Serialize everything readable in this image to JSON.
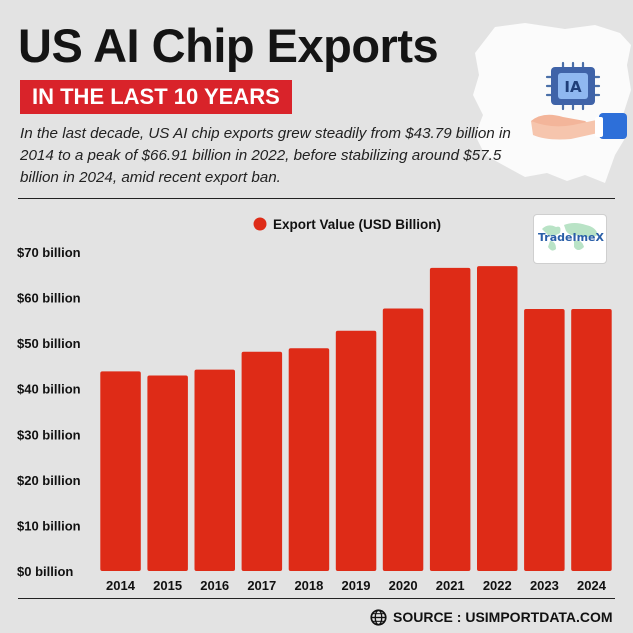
{
  "header": {
    "title": "US AI Chip Exports",
    "subtitle": "IN THE LAST 10 YEARS",
    "description": "In the last decade, US AI chip exports grew steadily from $43.79 billion in 2014 to a peak of $66.91 billion in 2022, before stabilizing around $57.5 billion in 2024, amid recent export ban."
  },
  "hero_chip_label": "IA",
  "logo": {
    "text": "TradeImeX"
  },
  "source": {
    "text": "SOURCE : USIMPORTDATA.COM"
  },
  "colors": {
    "bar": "#de2b17",
    "accent": "#d9232a",
    "background": "#e3e3e3"
  },
  "chart_data": {
    "type": "bar",
    "title": "US AI Chip Exports",
    "legend": "Export Value (USD Billion)",
    "legend_position": "top-center",
    "categories": [
      "2014",
      "2015",
      "2016",
      "2017",
      "2018",
      "2019",
      "2020",
      "2021",
      "2022",
      "2023",
      "2024"
    ],
    "values": [
      43.79,
      42.9,
      44.2,
      48.1,
      48.9,
      52.7,
      57.6,
      66.5,
      66.91,
      57.5,
      57.5
    ],
    "ylim": [
      0,
      70
    ],
    "yticks": [
      0,
      10,
      20,
      30,
      40,
      50,
      60,
      70
    ],
    "ytick_labels": [
      "$0 billion",
      "$10 billion",
      "$20 billion",
      "$30 billion",
      "$40 billion",
      "$50 billion",
      "$60 billion",
      "$70 billion"
    ],
    "xlabel": "",
    "ylabel": "",
    "grid": false
  }
}
